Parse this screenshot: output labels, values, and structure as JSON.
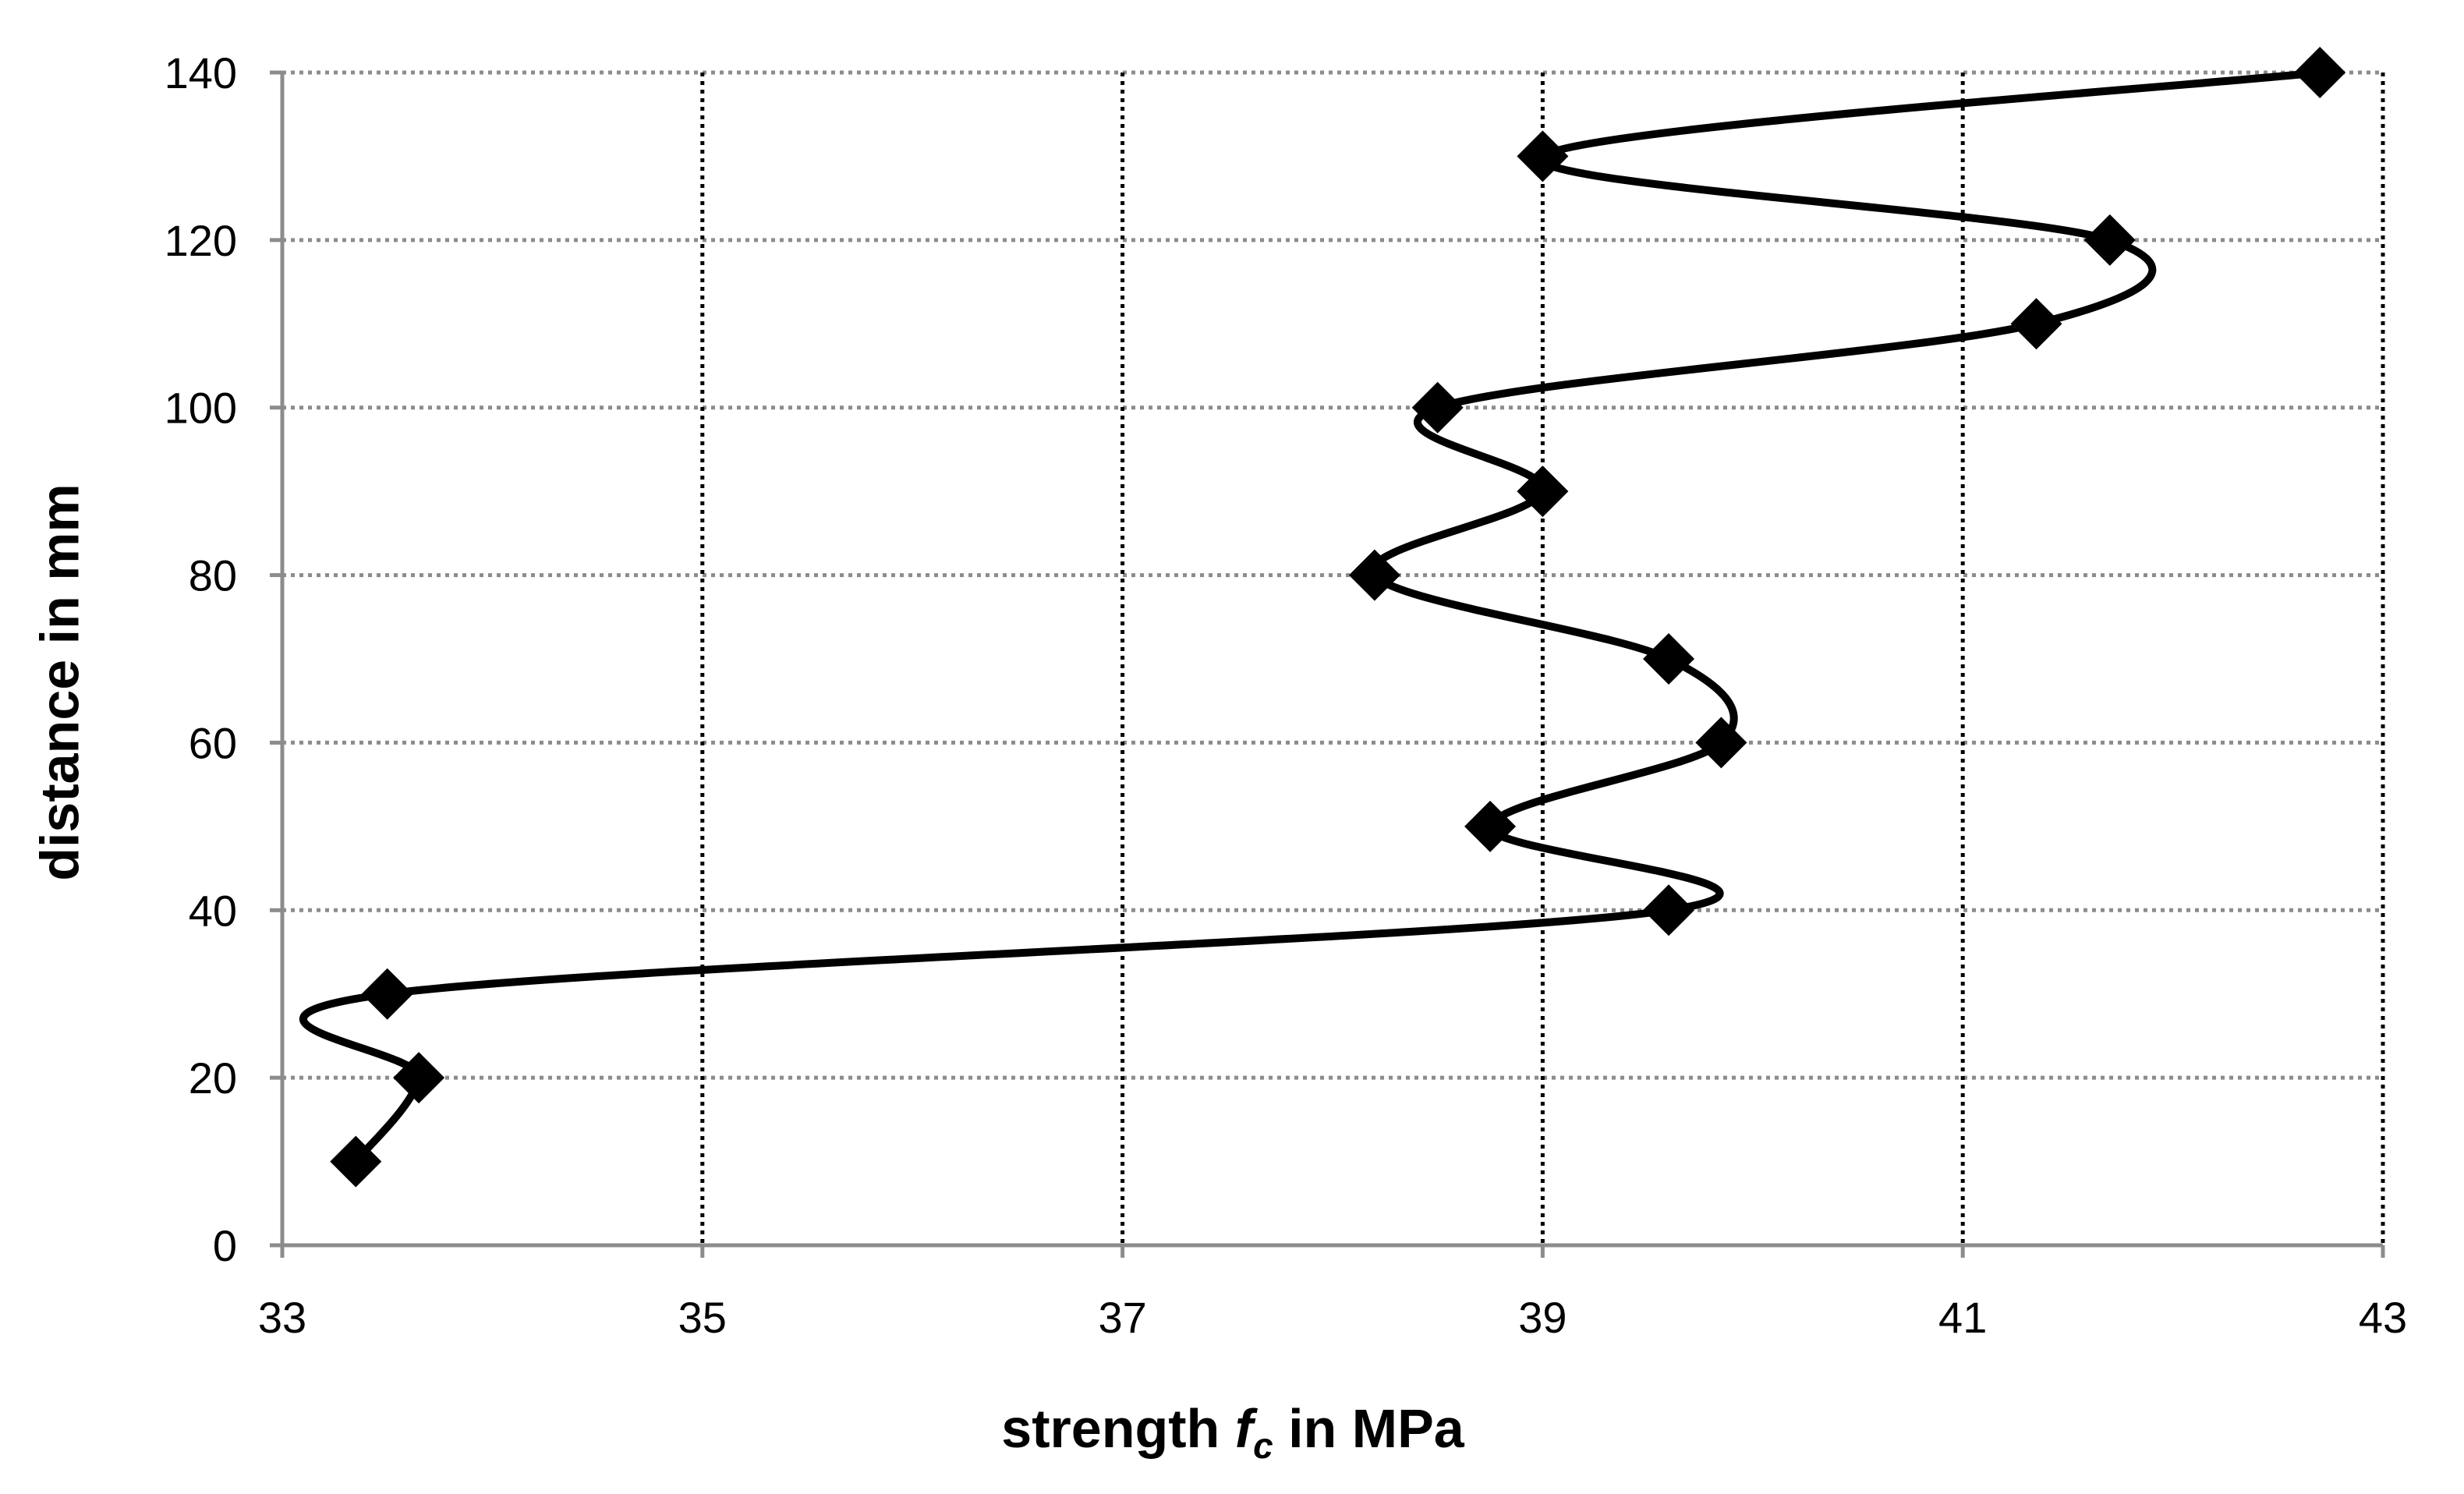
{
  "chart_data": {
    "type": "line",
    "xlabel": {
      "main": "strength ",
      "var": "f",
      "sub": "c",
      "rest": " in MPa"
    },
    "ylabel": "distance in mm",
    "xlim": [
      33,
      43
    ],
    "ylim": [
      0,
      140
    ],
    "xticks": [
      33,
      35,
      37,
      39,
      41,
      43
    ],
    "yticks": [
      0,
      20,
      40,
      60,
      80,
      100,
      120,
      140
    ],
    "grid": true,
    "marker": "diamond",
    "line": "smoothed",
    "series": [
      {
        "points": [
          {
            "x": 33.35,
            "y": 10
          },
          {
            "x": 33.65,
            "y": 20
          },
          {
            "x": 33.5,
            "y": 30
          },
          {
            "x": 39.6,
            "y": 40
          },
          {
            "x": 38.75,
            "y": 50
          },
          {
            "x": 39.85,
            "y": 60
          },
          {
            "x": 39.6,
            "y": 70
          },
          {
            "x": 38.2,
            "y": 80
          },
          {
            "x": 39.0,
            "y": 90
          },
          {
            "x": 38.5,
            "y": 100
          },
          {
            "x": 41.35,
            "y": 110
          },
          {
            "x": 41.7,
            "y": 120
          },
          {
            "x": 39.0,
            "y": 130
          },
          {
            "x": 42.7,
            "y": 140
          }
        ]
      }
    ],
    "colors": {
      "line": "#000000",
      "marker": "#000000",
      "grid": "#555555",
      "axis": "#8c8c8c"
    }
  }
}
